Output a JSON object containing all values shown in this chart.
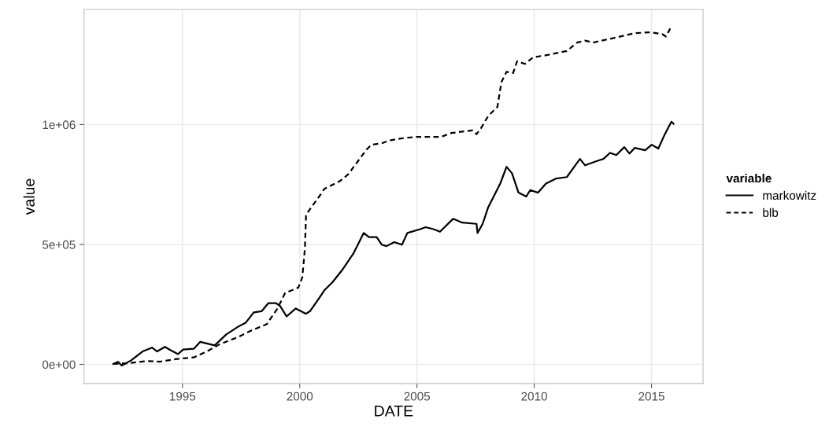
{
  "chart_data": {
    "type": "line",
    "xlabel": "DATE",
    "ylabel": "value",
    "legend_title": "variable",
    "legend": "right",
    "grid": true,
    "xlim": [
      1990.8,
      2017.2
    ],
    "xticks": [
      1995,
      2000,
      2005,
      2010,
      2015
    ],
    "ylim": [
      -80000,
      1480000
    ],
    "yticks": [
      {
        "value": 0,
        "label": "0e+00"
      },
      {
        "value": 500000,
        "label": "5e+05"
      },
      {
        "value": 1000000,
        "label": "1e+06"
      }
    ],
    "series": [
      {
        "name": "markowitz",
        "color": "#000000",
        "line_style": "solid",
        "x": [
          1992.05,
          1992.25,
          1992.41,
          1992.8,
          1993.3,
          1993.7,
          1993.92,
          1994.25,
          1994.48,
          1994.81,
          1995.03,
          1995.48,
          1995.76,
          1996.37,
          1996.87,
          1997.37,
          1997.7,
          1998.04,
          1998.38,
          1998.66,
          1998.99,
          1999.16,
          1999.44,
          1999.83,
          2000.27,
          2000.44,
          2000.83,
          2001.05,
          2001.39,
          2001.83,
          2002.28,
          2002.73,
          2002.95,
          2003.28,
          2003.5,
          2003.7,
          2004.03,
          2004.36,
          2004.59,
          2005.14,
          2005.37,
          2005.7,
          2005.98,
          2006.54,
          2006.93,
          2007.54,
          2007.58,
          2007.8,
          2008.04,
          2008.27,
          2008.55,
          2008.82,
          2009.05,
          2009.33,
          2009.66,
          2009.83,
          2010.16,
          2010.5,
          2010.94,
          2011.39,
          2011.67,
          2011.95,
          2012.17,
          2012.61,
          2012.95,
          2013.23,
          2013.5,
          2013.84,
          2014.06,
          2014.29,
          2014.73,
          2015.01,
          2015.29,
          2015.57,
          2015.85,
          2015.94
        ],
        "values": [
          2000,
          11000,
          -5000,
          16000,
          54000,
          70000,
          54000,
          73000,
          60000,
          43000,
          62000,
          65000,
          94000,
          79000,
          125000,
          157000,
          174000,
          217000,
          222000,
          255000,
          255000,
          244000,
          200000,
          233000,
          211000,
          222000,
          277000,
          309000,
          342000,
          396000,
          461000,
          548000,
          531000,
          531000,
          499000,
          493000,
          510000,
          499000,
          548000,
          564000,
          572000,
          564000,
          553000,
          607000,
          591000,
          586000,
          548000,
          586000,
          656000,
          700000,
          754000,
          824000,
          797000,
          716000,
          700000,
          727000,
          716000,
          754000,
          775000,
          781000,
          819000,
          857000,
          830000,
          846000,
          857000,
          882000,
          873000,
          906000,
          879000,
          903000,
          893000,
          916000,
          900000,
          960000,
          1012000,
          1003000
        ]
      },
      {
        "name": "blb",
        "color": "#000000",
        "line_style": "dashed",
        "x": [
          1992.05,
          1992.69,
          1993.47,
          1994.03,
          1994.7,
          1995.48,
          1996.04,
          1996.59,
          1997.37,
          1997.93,
          1998.6,
          1999.05,
          1999.38,
          1999.94,
          2000.11,
          2000.22,
          2000.27,
          2000.5,
          2000.83,
          2001.05,
          2001.72,
          2002.06,
          2002.39,
          2002.84,
          2003.06,
          2003.5,
          2003.81,
          2004.06,
          2004.48,
          2005.03,
          2006.04,
          2006.48,
          2007.37,
          2007.54,
          2007.71,
          2008.04,
          2008.43,
          2008.6,
          2008.82,
          2009.1,
          2009.27,
          2009.6,
          2009.94,
          2010.61,
          2011.39,
          2011.83,
          2012.17,
          2012.5,
          2013.39,
          2014.29,
          2014.96,
          2015.46,
          2015.62,
          2015.79,
          2015.94
        ],
        "values": [
          2000,
          5000,
          14000,
          11000,
          22000,
          29000,
          54000,
          84000,
          114000,
          141000,
          168000,
          233000,
          298000,
          320000,
          363000,
          483000,
          624000,
          656000,
          700000,
          732000,
          765000,
          792000,
          835000,
          895000,
          916000,
          922000,
          933000,
          938000,
          944000,
          949000,
          949000,
          965000,
          976000,
          960000,
          982000,
          1036000,
          1074000,
          1177000,
          1220000,
          1215000,
          1264000,
          1253000,
          1280000,
          1291000,
          1307000,
          1342000,
          1350000,
          1342000,
          1361000,
          1381000,
          1385000,
          1377000,
          1367000,
          1399000,
          1405000
        ]
      }
    ]
  }
}
